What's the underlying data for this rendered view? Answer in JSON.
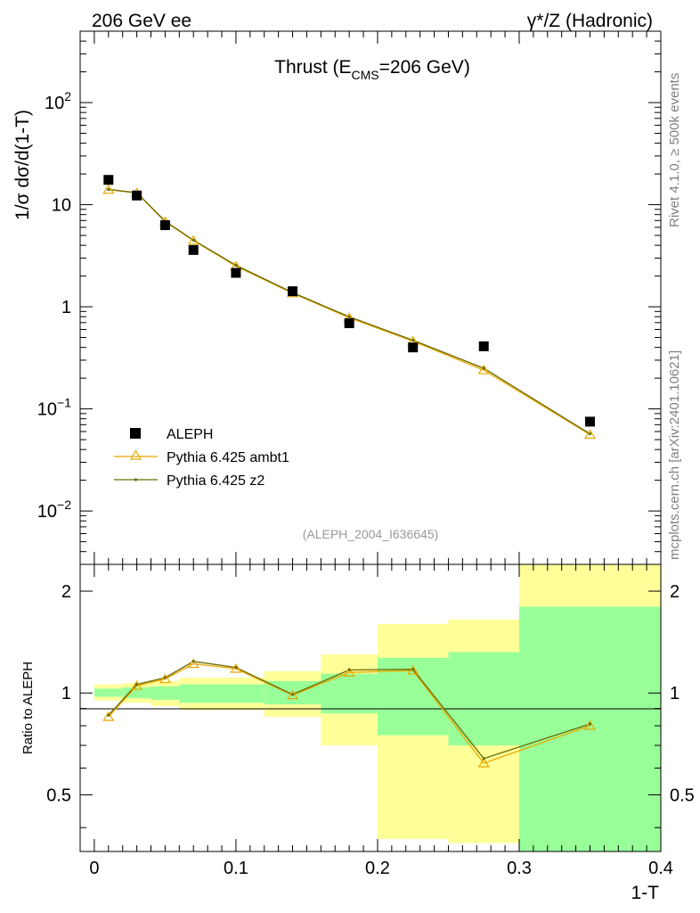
{
  "header": {
    "left": "206 GeV ee",
    "right": "γ*/Z (Hadronic)"
  },
  "side": {
    "rivet": "Rivet 4.1.0, ≥ 500k events",
    "mcplots": "mcplots.cern.ch [arXiv:2401.10621]"
  },
  "colors": {
    "ambt1": "#e8a800",
    "z2": "#6b6b00",
    "band_inner": "#99ff99",
    "band_outer": "#ffff99",
    "data": "#000000"
  },
  "chart_data": [
    {
      "type": "scatter",
      "title": "Thrust (E_CMS=206 GeV)",
      "title_main": "Thrust (E",
      "title_sub": "CMS",
      "title_tail": "=206 GeV)",
      "xlabel": "",
      "ylabel": "1/σ  dσ/d(1-T)",
      "yscale": "log",
      "xlim": [
        -0.01,
        0.4
      ],
      "ylim": [
        0.003,
        500
      ],
      "yticks": [
        {
          "value": 0.01,
          "base": "10",
          "exp": "−2"
        },
        {
          "value": 0.1,
          "base": "10",
          "exp": "−1"
        },
        {
          "value": 1,
          "base": "1",
          "exp": ""
        },
        {
          "value": 10,
          "base": "10",
          "exp": ""
        },
        {
          "value": 100,
          "base": "10",
          "exp": "2"
        }
      ],
      "watermark": "(ALEPH_2004_I636645)",
      "legend": {
        "position": "lower-left",
        "entries": [
          "ALEPH",
          "Pythia 6.425 ambt1",
          "Pythia 6.425 z2"
        ]
      },
      "series": [
        {
          "name": "ALEPH",
          "x": [
            0.01,
            0.03,
            0.05,
            0.07,
            0.1,
            0.14,
            0.18,
            0.225,
            0.275,
            0.35
          ],
          "y": [
            17.5,
            12.3,
            6.3,
            3.6,
            2.15,
            1.42,
            0.69,
            0.4,
            0.41,
            0.075
          ]
        },
        {
          "name": "Pythia 6.425 ambt1",
          "x": [
            0.01,
            0.03,
            0.05,
            0.07,
            0.1,
            0.14,
            0.18,
            0.225,
            0.275,
            0.35
          ],
          "y": [
            14.0,
            13.0,
            6.8,
            4.45,
            2.5,
            1.36,
            0.78,
            0.46,
            0.24,
            0.056
          ]
        },
        {
          "name": "Pythia 6.425 z2",
          "x": [
            0.01,
            0.03,
            0.05,
            0.07,
            0.1,
            0.14,
            0.18,
            0.225,
            0.275,
            0.35
          ],
          "y": [
            14.1,
            13.1,
            6.9,
            4.5,
            2.55,
            1.38,
            0.8,
            0.47,
            0.25,
            0.057
          ]
        }
      ]
    },
    {
      "type": "line",
      "xlabel": "1-T",
      "ylabel": "Ratio to ALEPH",
      "yscale": "log",
      "xlim": [
        -0.01,
        0.4
      ],
      "ylim": [
        0.34,
        2.4
      ],
      "xticks": [
        0,
        0.1,
        0.2,
        0.3,
        0.4
      ],
      "xtick_labels": [
        "0",
        "0.1",
        "0.2",
        "0.3",
        "0.4"
      ],
      "yticks": [
        0.5,
        1,
        2
      ],
      "ytick_labels": [
        "0.5",
        "1",
        "2"
      ],
      "bands": [
        {
          "x0": 0.0,
          "x1": 0.02,
          "inner": [
            0.975,
            1.03
          ],
          "outer": [
            0.95,
            1.06
          ]
        },
        {
          "x0": 0.02,
          "x1": 0.04,
          "inner": [
            0.965,
            1.04
          ],
          "outer": [
            0.935,
            1.07
          ]
        },
        {
          "x0": 0.04,
          "x1": 0.06,
          "inner": [
            0.955,
            1.045
          ],
          "outer": [
            0.915,
            1.085
          ]
        },
        {
          "x0": 0.06,
          "x1": 0.08,
          "inner": [
            0.935,
            1.06
          ],
          "outer": [
            0.89,
            1.11
          ]
        },
        {
          "x0": 0.08,
          "x1": 0.12,
          "inner": [
            0.935,
            1.06
          ],
          "outer": [
            0.89,
            1.11
          ]
        },
        {
          "x0": 0.12,
          "x1": 0.16,
          "inner": [
            0.925,
            1.085
          ],
          "outer": [
            0.85,
            1.16
          ]
        },
        {
          "x0": 0.16,
          "x1": 0.2,
          "inner": [
            0.87,
            1.14
          ],
          "outer": [
            0.7,
            1.3
          ]
        },
        {
          "x0": 0.2,
          "x1": 0.25,
          "inner": [
            0.75,
            1.27
          ],
          "outer": [
            0.37,
            1.6
          ]
        },
        {
          "x0": 0.25,
          "x1": 0.3,
          "inner": [
            0.7,
            1.32
          ],
          "outer": [
            0.36,
            1.65
          ]
        },
        {
          "x0": 0.3,
          "x1": 0.4,
          "inner": [
            0.34,
            1.8
          ],
          "outer": [
            0.34,
            2.4
          ]
        }
      ],
      "series": [
        {
          "name": "Pythia 6.425 ambt1",
          "x": [
            0.01,
            0.03,
            0.05,
            0.07,
            0.1,
            0.14,
            0.18,
            0.225,
            0.275,
            0.35
          ],
          "y": [
            0.85,
            1.05,
            1.1,
            1.22,
            1.18,
            0.985,
            1.15,
            1.165,
            0.62,
            0.8
          ]
        },
        {
          "name": "Pythia 6.425 z2",
          "x": [
            0.01,
            0.03,
            0.05,
            0.07,
            0.1,
            0.14,
            0.18,
            0.225,
            0.275,
            0.35
          ],
          "y": [
            0.86,
            1.06,
            1.11,
            1.24,
            1.19,
            0.99,
            1.17,
            1.175,
            0.64,
            0.81
          ]
        }
      ]
    }
  ]
}
